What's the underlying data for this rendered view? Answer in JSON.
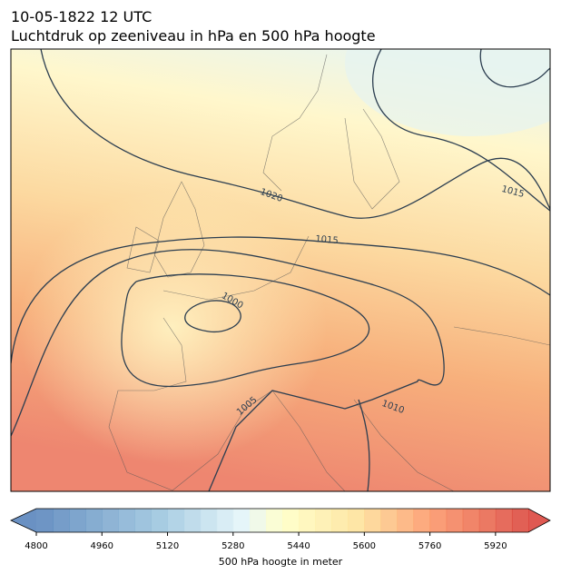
{
  "header": {
    "date": "10-05-1822 12 UTC",
    "title": "Luchtdruk op zeeniveau in hPa en 500 hPa hoogte"
  },
  "contour_labels": [
    "1020",
    "1015",
    "1015",
    "1000",
    "1005",
    "1010"
  ],
  "colorbar": {
    "lim": [
      4800,
      6000
    ],
    "step": 40,
    "ticks": [
      4800,
      4960,
      5120,
      5280,
      5440,
      5600,
      5760,
      5920
    ],
    "label": "500 hPa hoogte in meter"
  }
}
